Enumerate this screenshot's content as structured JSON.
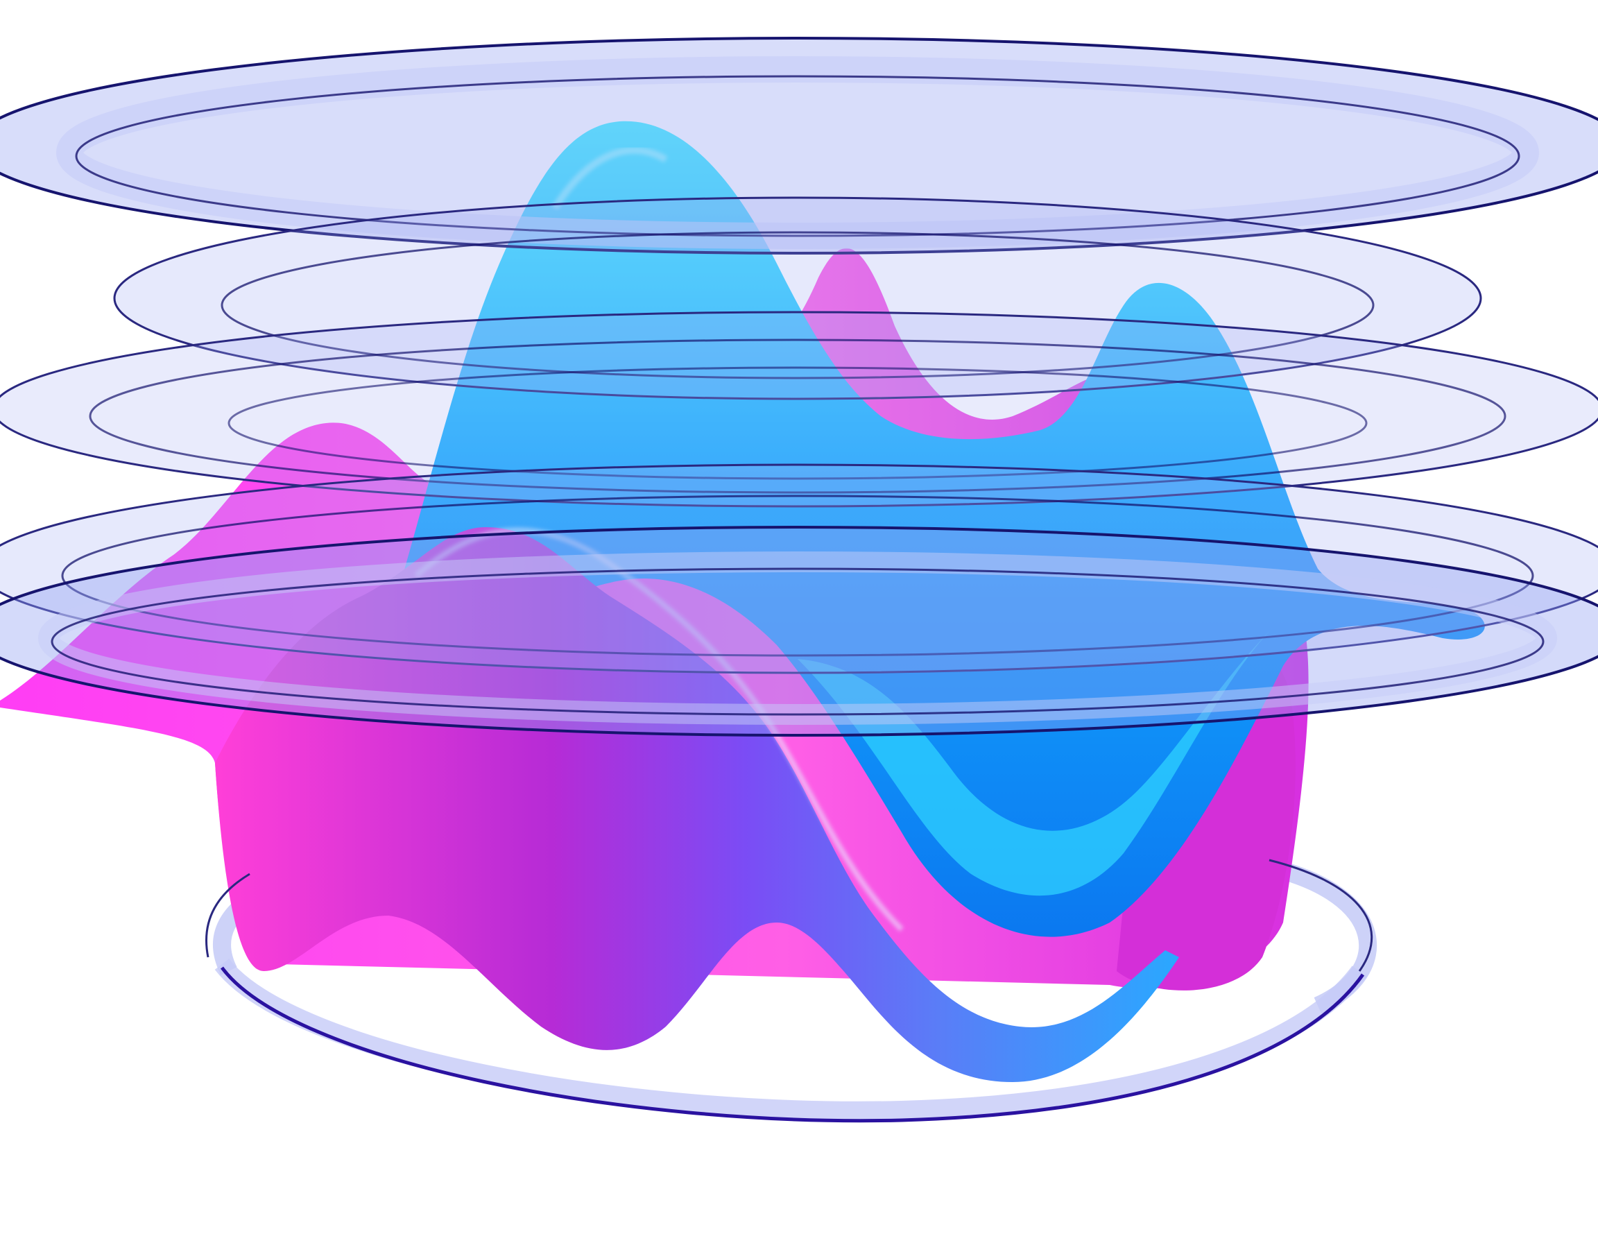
{
  "colors": {
    "background": "#ffffff",
    "cyan": "#2fd2ff",
    "blue": "#0f86f2",
    "violet": "#7b4cf5",
    "magenta": "#ff3df5",
    "pink": "#ff4fcf",
    "ring_fill": "#8f9df2",
    "ring_edge": "#16146e",
    "ring_highlight": "#eef0ff"
  },
  "scene": {
    "subject": "wavy-surface-with-contour-rings",
    "ring_count": 6
  }
}
